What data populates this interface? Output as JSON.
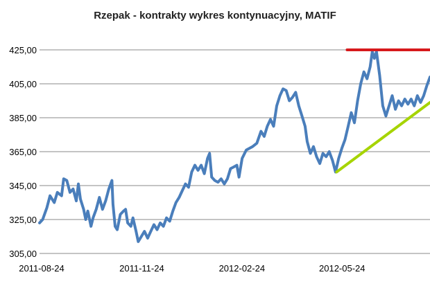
{
  "chart_data": {
    "type": "line",
    "title": "Rzepak - kontrakty wykres kontynuacyjny, MATIF",
    "xlabel": "",
    "ylabel": "",
    "x_tick_labels": [
      "2011-08-24",
      "2011-11-24",
      "2012-02-24",
      "2012-05-24",
      "20"
    ],
    "y_tick_labels": [
      "425,00",
      "405,00",
      "385,00",
      "365,00",
      "345,00",
      "325,00",
      "305,00"
    ],
    "ylim": [
      305,
      425
    ],
    "xlim": [
      "2011-08-22",
      "2012-08-28"
    ],
    "grid": "horizontal",
    "series": [
      {
        "color": "#4a7ebb",
        "points": [
          [
            "2011-08-22",
            323
          ],
          [
            "2011-08-25",
            325
          ],
          [
            "2011-08-29",
            332
          ],
          [
            "2011-09-01",
            339
          ],
          [
            "2011-09-05",
            335
          ],
          [
            "2011-09-08",
            341
          ],
          [
            "2011-09-12",
            339
          ],
          [
            "2011-09-14",
            349
          ],
          [
            "2011-09-17",
            348
          ],
          [
            "2011-09-20",
            341
          ],
          [
            "2011-09-23",
            343
          ],
          [
            "2011-09-26",
            336
          ],
          [
            "2011-09-28",
            346
          ],
          [
            "2011-09-30",
            337
          ],
          [
            "2011-10-03",
            331
          ],
          [
            "2011-10-05",
            325
          ],
          [
            "2011-10-07",
            330
          ],
          [
            "2011-10-10",
            321
          ],
          [
            "2011-10-12",
            326
          ],
          [
            "2011-10-15",
            331
          ],
          [
            "2011-10-18",
            338
          ],
          [
            "2011-10-21",
            331
          ],
          [
            "2011-10-24",
            336
          ],
          [
            "2011-10-27",
            343
          ],
          [
            "2011-10-30",
            348
          ],
          [
            "2011-10-31",
            334
          ],
          [
            "2011-11-02",
            321
          ],
          [
            "2011-11-04",
            319
          ],
          [
            "2011-11-07",
            328
          ],
          [
            "2011-11-10",
            330
          ],
          [
            "2011-11-12",
            331
          ],
          [
            "2011-11-14",
            323
          ],
          [
            "2011-11-17",
            321
          ],
          [
            "2011-11-19",
            326
          ],
          [
            "2011-11-22",
            318
          ],
          [
            "2011-11-24",
            312
          ],
          [
            "2011-11-27",
            315
          ],
          [
            "2011-11-30",
            318
          ],
          [
            "2011-12-03",
            314
          ],
          [
            "2011-12-06",
            318
          ],
          [
            "2011-12-09",
            322
          ],
          [
            "2011-12-12",
            319
          ],
          [
            "2011-12-15",
            323
          ],
          [
            "2011-12-18",
            321
          ],
          [
            "2011-12-21",
            326
          ],
          [
            "2011-12-24",
            324
          ],
          [
            "2011-12-27",
            330
          ],
          [
            "2011-12-30",
            335
          ],
          [
            "2012-01-02",
            338
          ],
          [
            "2012-01-05",
            342
          ],
          [
            "2012-01-08",
            346
          ],
          [
            "2012-01-11",
            344
          ],
          [
            "2012-01-14",
            353
          ],
          [
            "2012-01-17",
            357
          ],
          [
            "2012-01-20",
            354
          ],
          [
            "2012-01-23",
            357
          ],
          [
            "2012-01-26",
            352
          ],
          [
            "2012-01-29",
            361
          ],
          [
            "2012-01-31",
            364
          ],
          [
            "2012-02-02",
            350
          ],
          [
            "2012-02-05",
            348
          ],
          [
            "2012-02-08",
            347
          ],
          [
            "2012-02-11",
            349
          ],
          [
            "2012-02-14",
            346
          ],
          [
            "2012-02-17",
            349
          ],
          [
            "2012-02-20",
            355
          ],
          [
            "2012-02-23",
            356
          ],
          [
            "2012-02-26",
            357
          ],
          [
            "2012-02-28",
            350
          ],
          [
            "2012-03-02",
            361
          ],
          [
            "2012-03-06",
            366
          ],
          [
            "2012-03-09",
            367
          ],
          [
            "2012-03-12",
            368
          ],
          [
            "2012-03-16",
            370
          ],
          [
            "2012-03-20",
            377
          ],
          [
            "2012-03-23",
            374
          ],
          [
            "2012-03-26",
            380
          ],
          [
            "2012-03-29",
            384
          ],
          [
            "2012-04-01",
            380
          ],
          [
            "2012-04-04",
            392
          ],
          [
            "2012-04-07",
            398
          ],
          [
            "2012-04-10",
            402
          ],
          [
            "2012-04-13",
            401
          ],
          [
            "2012-04-16",
            395
          ],
          [
            "2012-04-19",
            397
          ],
          [
            "2012-04-22",
            400
          ],
          [
            "2012-04-25",
            392
          ],
          [
            "2012-04-28",
            386
          ],
          [
            "2012-05-01",
            380
          ],
          [
            "2012-05-03",
            371
          ],
          [
            "2012-05-06",
            364
          ],
          [
            "2012-05-09",
            368
          ],
          [
            "2012-05-12",
            362
          ],
          [
            "2012-05-15",
            358
          ],
          [
            "2012-05-18",
            364
          ],
          [
            "2012-05-21",
            362
          ],
          [
            "2012-05-24",
            365
          ],
          [
            "2012-05-27",
            360
          ],
          [
            "2012-05-30",
            353
          ],
          [
            "2012-06-02",
            361
          ],
          [
            "2012-06-05",
            367
          ],
          [
            "2012-06-08",
            372
          ],
          [
            "2012-06-11",
            380
          ],
          [
            "2012-06-14",
            388
          ],
          [
            "2012-06-17",
            382
          ],
          [
            "2012-06-20",
            395
          ],
          [
            "2012-06-23",
            405
          ],
          [
            "2012-06-26",
            412
          ],
          [
            "2012-06-29",
            408
          ],
          [
            "2012-07-02",
            415
          ],
          [
            "2012-07-04",
            424
          ],
          [
            "2012-07-06",
            420
          ],
          [
            "2012-07-08",
            424
          ],
          [
            "2012-07-11",
            410
          ],
          [
            "2012-07-14",
            392
          ],
          [
            "2012-07-17",
            386
          ],
          [
            "2012-07-20",
            392
          ],
          [
            "2012-07-23",
            398
          ],
          [
            "2012-07-26",
            390
          ],
          [
            "2012-07-29",
            395
          ],
          [
            "2012-08-01",
            392
          ],
          [
            "2012-08-04",
            396
          ],
          [
            "2012-08-07",
            393
          ],
          [
            "2012-08-10",
            396
          ],
          [
            "2012-08-13",
            392
          ],
          [
            "2012-08-16",
            398
          ],
          [
            "2012-08-19",
            394
          ],
          [
            "2012-08-22",
            398
          ],
          [
            "2012-08-25",
            404
          ],
          [
            "2012-08-28",
            409
          ]
        ]
      }
    ],
    "annotations": [
      {
        "type": "resistance-line",
        "color": "#d7191c",
        "from": [
          "2012-06-10",
          425
        ],
        "to": [
          "2012-08-28",
          425
        ]
      },
      {
        "type": "support-trendline",
        "color": "#a6d400",
        "from": [
          "2012-05-31",
          353
        ],
        "to": [
          "2012-08-28",
          394
        ]
      }
    ]
  }
}
